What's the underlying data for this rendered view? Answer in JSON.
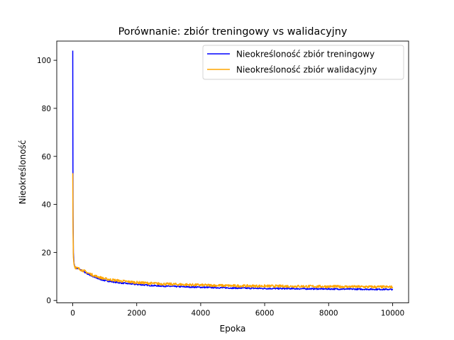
{
  "chart_data": {
    "type": "line",
    "title": "Porównanie: zbiór treningowy vs walidacyjny",
    "xlabel": "Epoka",
    "ylabel": "Nieokreśloność",
    "xlim": [
      -500,
      10500
    ],
    "ylim": [
      -1,
      108
    ],
    "xticks": [
      0,
      2000,
      4000,
      6000,
      8000,
      10000
    ],
    "xtick_labels": [
      "0",
      "2000",
      "4000",
      "6000",
      "8000",
      "10000"
    ],
    "yticks": [
      0,
      20,
      40,
      60,
      80,
      100
    ],
    "ytick_labels": [
      "0",
      "20",
      "40",
      "60",
      "80",
      "100"
    ],
    "grid": false,
    "legend_position": "top-right",
    "series": [
      {
        "name": "Nieokreśloność zbiór treningowy",
        "color": "#0000ff",
        "x": [
          0,
          5,
          10,
          20,
          40,
          60,
          100,
          150,
          200,
          300,
          400,
          500,
          700,
          1000,
          1500,
          2000,
          2500,
          3000,
          4000,
          5000,
          6000,
          7000,
          8000,
          9000,
          10000
        ],
        "y": [
          104,
          60,
          35,
          20,
          15.5,
          14.2,
          13.6,
          13.3,
          13,
          12.3,
          11.6,
          10.8,
          9.5,
          8.3,
          7.3,
          6.7,
          6.2,
          5.9,
          5.5,
          5.2,
          5.0,
          4.9,
          4.8,
          4.7,
          4.6
        ]
      },
      {
        "name": "Nieokreśloność zbiór walidacyjny",
        "color": "#ffa500",
        "x": [
          0,
          5,
          10,
          20,
          40,
          60,
          100,
          150,
          200,
          300,
          400,
          500,
          700,
          1000,
          1500,
          2000,
          2500,
          3000,
          4000,
          5000,
          6000,
          7000,
          8000,
          9000,
          10000
        ],
        "y": [
          53,
          40,
          28,
          18,
          15,
          14,
          13.6,
          13.4,
          13.2,
          12.6,
          12.0,
          11.3,
          10.2,
          9.0,
          8.1,
          7.5,
          7.1,
          6.8,
          6.4,
          6.1,
          6.0,
          5.9,
          5.8,
          5.7,
          5.6
        ]
      }
    ]
  }
}
